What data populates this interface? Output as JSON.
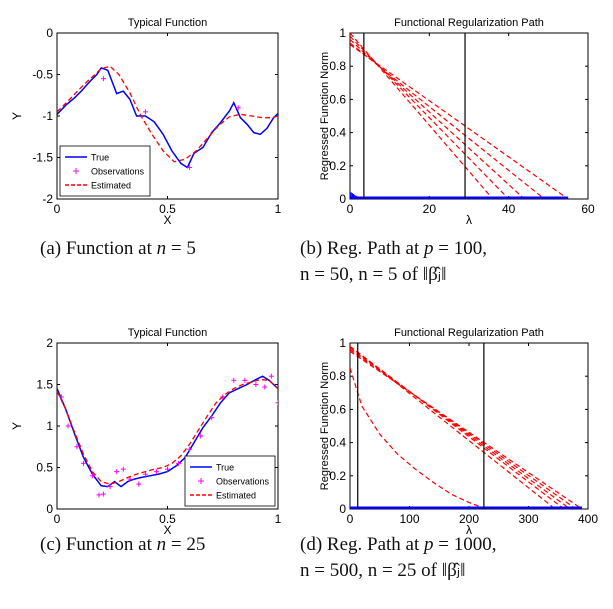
{
  "chart_data": [
    {
      "id": "a",
      "type": "line",
      "title": "Typical Function",
      "xlabel": "X",
      "ylabel": "Y",
      "xlim": [
        0,
        1
      ],
      "ylim": [
        -2,
        0
      ],
      "xticks": [
        0,
        0.5,
        1
      ],
      "yticks": [
        0,
        -0.5,
        -1,
        -1.5,
        -2
      ],
      "xtick_labels": [
        "0",
        "0.5",
        "1"
      ],
      "ytick_labels": [
        "0",
        "-0.5",
        "-1",
        "-1.5",
        "-2"
      ],
      "legend": {
        "position": "bottom-left",
        "entries": [
          "True",
          "Observations",
          "Estimated"
        ]
      },
      "series": [
        {
          "name": "True",
          "style": "solid",
          "color": "#0000ff",
          "x": [
            0,
            0.04,
            0.08,
            0.11,
            0.15,
            0.18,
            0.2,
            0.23,
            0.27,
            0.3,
            0.33,
            0.36,
            0.4,
            0.44,
            0.48,
            0.52,
            0.56,
            0.59,
            0.62,
            0.66,
            0.7,
            0.74,
            0.78,
            0.8,
            0.83,
            0.86,
            0.89,
            0.92,
            0.95,
            0.98,
            1.0
          ],
          "y": [
            -0.98,
            -0.87,
            -0.78,
            -0.7,
            -0.58,
            -0.5,
            -0.42,
            -0.45,
            -0.73,
            -0.7,
            -0.8,
            -1.0,
            -1.0,
            -1.07,
            -1.22,
            -1.42,
            -1.57,
            -1.62,
            -1.45,
            -1.38,
            -1.2,
            -1.08,
            -0.94,
            -0.84,
            -1.02,
            -1.1,
            -1.2,
            -1.22,
            -1.15,
            -1.02,
            -0.97
          ]
        },
        {
          "name": "Observations",
          "style": "markers",
          "color": "#ff00ff",
          "x": [
            0.21,
            0.4,
            0.6,
            0.82
          ],
          "y": [
            -0.55,
            -0.95,
            -1.62,
            -0.9
          ]
        },
        {
          "name": "Estimated",
          "style": "dashed",
          "color": "#ff0000",
          "x": [
            0,
            0.05,
            0.1,
            0.15,
            0.2,
            0.24,
            0.28,
            0.33,
            0.38,
            0.43,
            0.48,
            0.53,
            0.58,
            0.63,
            0.68,
            0.73,
            0.78,
            0.83,
            0.88,
            0.93,
            0.97,
            1.0
          ],
          "y": [
            -0.95,
            -0.82,
            -0.68,
            -0.55,
            -0.43,
            -0.4,
            -0.5,
            -0.72,
            -1.0,
            -1.22,
            -1.42,
            -1.55,
            -1.52,
            -1.42,
            -1.27,
            -1.12,
            -1.01,
            -0.98,
            -1.0,
            -1.02,
            -1.02,
            -1.0
          ]
        }
      ]
    },
    {
      "id": "b",
      "type": "line",
      "title": "Functional Regularization Path",
      "xlabel": "λ",
      "ylabel": "Regressed Function Norm",
      "xlim": [
        0,
        60
      ],
      "ylim": [
        0,
        1
      ],
      "xticks": [
        0,
        20,
        40,
        60
      ],
      "yticks": [
        0,
        0.2,
        0.4,
        0.6,
        0.8,
        1
      ],
      "xtick_labels": [
        "0",
        "20",
        "40",
        "60"
      ],
      "ytick_labels": [
        "0",
        "0.2",
        "0.4",
        "0.6",
        "0.8",
        "1"
      ],
      "vlines": [
        3.5,
        29
      ],
      "red_paths": [
        {
          "x": [
            0,
            36
          ],
          "y": [
            1.0,
            0
          ]
        },
        {
          "x": [
            0,
            40
          ],
          "y": [
            0.98,
            0
          ]
        },
        {
          "x": [
            0,
            44
          ],
          "y": [
            0.96,
            0
          ]
        },
        {
          "x": [
            0,
            49
          ],
          "y": [
            0.94,
            0
          ]
        },
        {
          "x": [
            0,
            55
          ],
          "y": [
            0.93,
            0
          ]
        }
      ],
      "blue_zero_max": 55,
      "blue_spike_x": [
        0,
        0.3,
        0.6,
        0.9,
        1.2,
        1.5,
        1.8,
        2.1,
        2.4,
        2.7,
        3.0,
        3.3
      ],
      "blue_spike_y": [
        0.05,
        0.04,
        0.035,
        0.03,
        0.025,
        0.02,
        0.016,
        0.012,
        0.009,
        0.006,
        0.003,
        0.001
      ]
    },
    {
      "id": "c",
      "type": "line",
      "title": "Typical Function",
      "xlabel": "X",
      "ylabel": "Y",
      "xlim": [
        0,
        1
      ],
      "ylim": [
        0,
        2
      ],
      "xticks": [
        0,
        0.5,
        1
      ],
      "yticks": [
        0,
        0.5,
        1,
        1.5,
        2
      ],
      "xtick_labels": [
        "0",
        "0.5",
        "1"
      ],
      "ytick_labels": [
        "0",
        "0.5",
        "1",
        "1.5",
        "2"
      ],
      "legend": {
        "position": "bottom-right",
        "entries": [
          "True",
          "Observations",
          "Estimated"
        ]
      },
      "series": [
        {
          "name": "True",
          "style": "solid",
          "color": "#0000ff",
          "x": [
            0,
            0.04,
            0.08,
            0.12,
            0.16,
            0.2,
            0.23,
            0.26,
            0.29,
            0.32,
            0.35,
            0.38,
            0.42,
            0.46,
            0.5,
            0.54,
            0.58,
            0.62,
            0.66,
            0.7,
            0.74,
            0.78,
            0.82,
            0.86,
            0.9,
            0.93,
            0.96,
            0.98,
            1.0
          ],
          "y": [
            1.45,
            1.2,
            0.9,
            0.62,
            0.42,
            0.28,
            0.27,
            0.33,
            0.27,
            0.33,
            0.36,
            0.38,
            0.4,
            0.42,
            0.45,
            0.52,
            0.62,
            0.8,
            0.98,
            1.12,
            1.28,
            1.4,
            1.45,
            1.5,
            1.56,
            1.6,
            1.55,
            1.5,
            1.45
          ]
        },
        {
          "name": "Observations",
          "style": "markers",
          "color": "#ff00ff",
          "x": [
            0.02,
            0.05,
            0.09,
            0.12,
            0.16,
            0.19,
            0.21,
            0.24,
            0.27,
            0.3,
            0.33,
            0.37,
            0.4,
            0.45,
            0.5,
            0.55,
            0.6,
            0.65,
            0.7,
            0.75,
            0.8,
            0.85,
            0.9,
            0.94,
            0.97,
            1.0
          ],
          "y": [
            1.35,
            1.0,
            0.75,
            0.55,
            0.4,
            0.17,
            0.18,
            0.27,
            0.45,
            0.48,
            0.36,
            0.3,
            0.42,
            0.45,
            0.48,
            0.55,
            0.72,
            0.88,
            1.1,
            1.35,
            1.55,
            1.55,
            1.5,
            1.47,
            1.6,
            1.28
          ]
        },
        {
          "name": "Estimated",
          "style": "dashed",
          "color": "#ff0000",
          "x": [
            0,
            0.04,
            0.08,
            0.12,
            0.16,
            0.2,
            0.24,
            0.28,
            0.32,
            0.36,
            0.4,
            0.44,
            0.48,
            0.52,
            0.56,
            0.6,
            0.64,
            0.68,
            0.72,
            0.76,
            0.8,
            0.84,
            0.88,
            0.92,
            0.96,
            1.0
          ],
          "y": [
            1.42,
            1.2,
            0.92,
            0.66,
            0.45,
            0.33,
            0.3,
            0.33,
            0.38,
            0.42,
            0.45,
            0.48,
            0.5,
            0.55,
            0.64,
            0.78,
            0.95,
            1.12,
            1.28,
            1.38,
            1.45,
            1.5,
            1.53,
            1.56,
            1.55,
            1.45
          ]
        }
      ]
    },
    {
      "id": "d",
      "type": "line",
      "title": "Functional Regularization Path",
      "xlabel": "λ",
      "ylabel": "Regressed Function Norm",
      "xlim": [
        0,
        400
      ],
      "ylim": [
        0,
        1
      ],
      "xticks": [
        0,
        100,
        200,
        300,
        400
      ],
      "yticks": [
        0,
        0.2,
        0.4,
        0.6,
        0.8,
        1
      ],
      "xtick_labels": [
        "0",
        "100",
        "200",
        "300",
        "400"
      ],
      "ytick_labels": [
        "0",
        "0.2",
        "0.4",
        "0.6",
        "0.8",
        "1"
      ],
      "vlines": [
        13,
        225
      ],
      "red_paths": [
        {
          "x": [
            0,
            345
          ],
          "y": [
            0.98,
            0
          ]
        },
        {
          "x": [
            0,
            360
          ],
          "y": [
            0.98,
            0
          ]
        },
        {
          "x": [
            0,
            370
          ],
          "y": [
            0.97,
            0
          ]
        },
        {
          "x": [
            0,
            380
          ],
          "y": [
            0.96,
            0
          ]
        },
        {
          "x": [
            0,
            390
          ],
          "y": [
            0.95,
            0
          ]
        },
        {
          "x": [
            0,
            20,
            50,
            80,
            110,
            140,
            170,
            200,
            228
          ],
          "y": [
            0.85,
            0.62,
            0.45,
            0.33,
            0.24,
            0.16,
            0.09,
            0.04,
            0
          ]
        }
      ],
      "blue_zero_max": 390,
      "blue_spike_x": [],
      "blue_spike_y": []
    }
  ],
  "captions": {
    "a": {
      "prefix": "(a) Function at ",
      "var": "n",
      "suffix": " = 5"
    },
    "b": {
      "line1_prefix": "(b) Reg.  Path at ",
      "line1_var": "p",
      "line1_suffix": " = 100,",
      "line2": "n = 50, n = 5 of ‖β̂ⱼ‖"
    },
    "c": {
      "prefix": "(c) Function at ",
      "var": "n",
      "suffix": " = 25"
    },
    "d": {
      "line1_prefix": "(d) Reg.  Path at ",
      "line1_var": "p",
      "line1_suffix": " = 1000,",
      "line2": "n = 500, n = 25 of ‖β̂ⱼ‖"
    }
  }
}
